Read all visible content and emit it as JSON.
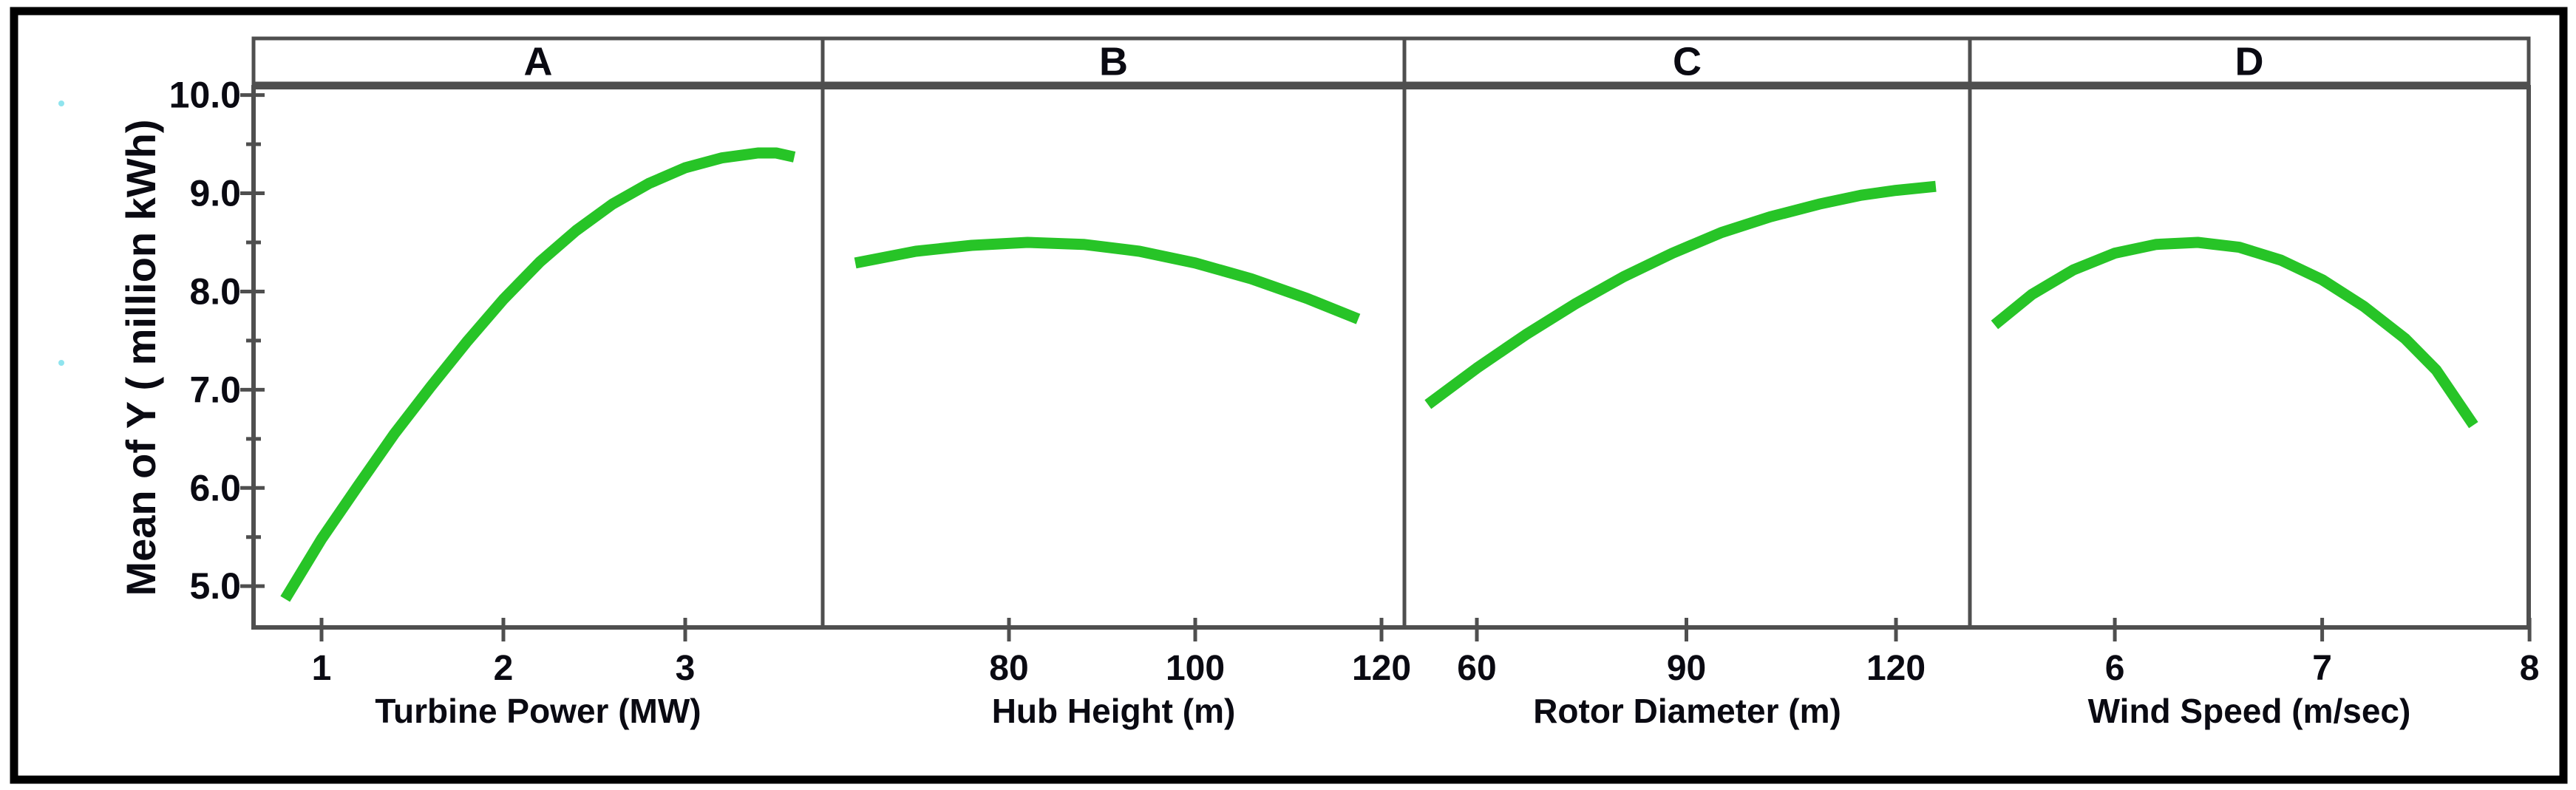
{
  "figure": {
    "y_axis_title": "Mean of Y ( million kWh)",
    "panel_labels": [
      "A",
      "B",
      "C",
      "D"
    ]
  },
  "chart_data": {
    "type": "line",
    "title": "",
    "ylabel": "Mean of Y ( million kWh)",
    "ylim": [
      4.58,
      10.08
    ],
    "y_major_ticks": [
      10.0,
      9.0,
      8.0,
      7.0,
      6.0,
      5.0
    ],
    "y_major_tick_labels": [
      "10.0",
      "9.0",
      "8.0",
      "7.0",
      "6.0",
      "5.0"
    ],
    "y_minor_ticks": [
      9.5,
      8.5,
      7.5,
      6.5,
      5.5
    ],
    "grid": false,
    "legend": "none",
    "line_color": "#27c427",
    "frame_color": "#4f4f4f",
    "outer_border_color": "#000000",
    "panels": [
      {
        "label": "A",
        "xlabel": "Turbine Power (MW)",
        "xlim": [
          0.626,
          3.756
        ],
        "x_ticks": [
          1,
          2,
          3
        ],
        "x_tick_labels": [
          "1",
          "2",
          "3"
        ],
        "points": [
          [
            0.8,
            4.87
          ],
          [
            1.0,
            5.48
          ],
          [
            1.2,
            6.02
          ],
          [
            1.4,
            6.55
          ],
          [
            1.6,
            7.03
          ],
          [
            1.8,
            7.49
          ],
          [
            2.0,
            7.92
          ],
          [
            2.2,
            8.3
          ],
          [
            2.4,
            8.62
          ],
          [
            2.6,
            8.89
          ],
          [
            2.8,
            9.1
          ],
          [
            3.0,
            9.26
          ],
          [
            3.2,
            9.36
          ],
          [
            3.4,
            9.41
          ],
          [
            3.5,
            9.41
          ],
          [
            3.6,
            9.37
          ]
        ]
      },
      {
        "label": "B",
        "xlabel": "Hub Height (m)",
        "xlim": [
          60.0,
          122.46
        ],
        "x_ticks": [
          80,
          100,
          120
        ],
        "x_tick_labels": [
          "80",
          "100",
          "120"
        ],
        "points": [
          [
            63.5,
            8.29
          ],
          [
            70,
            8.41
          ],
          [
            76,
            8.47
          ],
          [
            82,
            8.5
          ],
          [
            88,
            8.48
          ],
          [
            94,
            8.41
          ],
          [
            100,
            8.29
          ],
          [
            106,
            8.13
          ],
          [
            112,
            7.93
          ],
          [
            117.5,
            7.72
          ]
        ]
      },
      {
        "label": "C",
        "xlabel": "Rotor Diameter (m)",
        "xlim": [
          49.63,
          130.58
        ],
        "x_ticks": [
          60,
          90,
          120
        ],
        "x_tick_labels": [
          "60",
          "90",
          "120"
        ],
        "points": [
          [
            53,
            6.85
          ],
          [
            60,
            7.22
          ],
          [
            67,
            7.56
          ],
          [
            74,
            7.87
          ],
          [
            81,
            8.15
          ],
          [
            88,
            8.39
          ],
          [
            95,
            8.6
          ],
          [
            102,
            8.76
          ],
          [
            109,
            8.89
          ],
          [
            115,
            8.98
          ],
          [
            120,
            9.03
          ],
          [
            125.7,
            9.07
          ]
        ]
      },
      {
        "label": "D",
        "xlabel": "Wind Speed (m/sec)",
        "xlim": [
          5.301,
          7.996
        ],
        "x_ticks": [
          6,
          7,
          8
        ],
        "x_tick_labels": [
          "6",
          "7",
          "8"
        ],
        "points": [
          [
            5.42,
            7.66
          ],
          [
            5.6,
            7.97
          ],
          [
            5.8,
            8.22
          ],
          [
            6.0,
            8.39
          ],
          [
            6.2,
            8.48
          ],
          [
            6.4,
            8.5
          ],
          [
            6.6,
            8.45
          ],
          [
            6.8,
            8.32
          ],
          [
            7.0,
            8.12
          ],
          [
            7.2,
            7.85
          ],
          [
            7.4,
            7.52
          ],
          [
            7.55,
            7.2
          ],
          [
            7.73,
            6.64
          ]
        ]
      }
    ]
  }
}
